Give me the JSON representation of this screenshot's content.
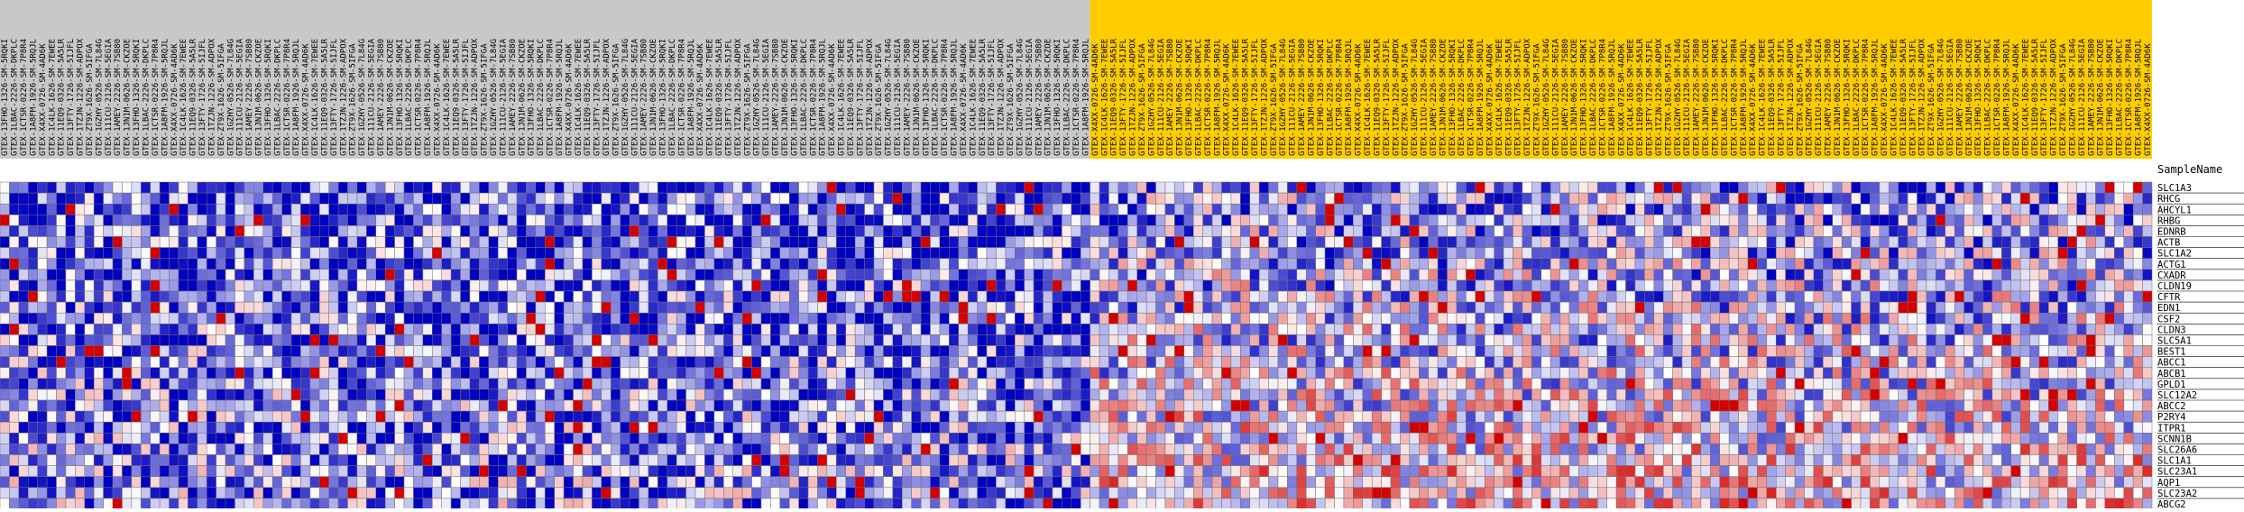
{
  "chart_data": {
    "type": "heatmap",
    "row_header": "SampleName",
    "rows": [
      "SLC1A3",
      "RHCG",
      "AHCYL1",
      "RHBG",
      "EDNRB",
      "ACTB",
      "SLC1A2",
      "ACTG1",
      "CXADR",
      "CLDN19",
      "CFTR",
      "EDN1",
      "CSF2",
      "CLDN3",
      "SLC5A1",
      "BEST1",
      "ABCC1",
      "ABCB1",
      "GPLD1",
      "SLC12A2",
      "ABCC2",
      "P2RY4",
      "ITPR1",
      "SCNN1B",
      "SLC26A6",
      "SLC1A1",
      "SLC23A1",
      "AQP1",
      "SLC23A2",
      "ABCG2"
    ],
    "column_groups": [
      {
        "name": "grey",
        "label_color": "#c8c8c8",
        "count": 116
      },
      {
        "name": "gold",
        "label_color": "#ffcc00",
        "count": 113
      }
    ],
    "column_label_samples": [
      "GTEX-13FHO-1326-SM-5RQKI",
      "GTEX-1LBAC-2226-SM-DKPLC",
      "GTEX-1CTSR-0226-SM-7P8R4",
      "GTEX-1A8FM-1926-SM-5RQJL",
      "GTEX-X4XX-0726-SM-4AD6K",
      "GTEX-1C4LK-1626-SM-7EWEE",
      "GTEX-11EQ9-0326-SM-5A5LR",
      "GTEX-13FTY-1726-SM-5IJFL",
      "GTEX-1TZJN-1226-SM-ADPOX",
      "GTEX-ZT9X-1626-SM-5IFGA",
      "GTEX-1GZHY-0526-SM-7L84G",
      "GTEX-111CU-2126-SM-5EGIA",
      "GTEX-1AMEY-2226-SM-7SB80",
      "GTEX-1JN1M-0626-SM-CKZOE"
    ],
    "color_scale": {
      "low": "#0000c0",
      "mid": "#ffffff",
      "high": "#d40000"
    },
    "grid": true
  }
}
